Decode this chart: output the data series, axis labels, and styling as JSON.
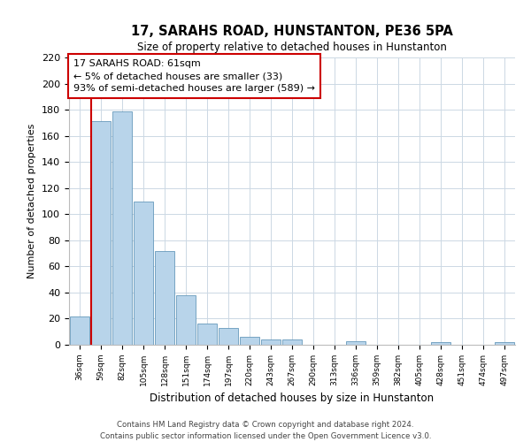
{
  "title": "17, SARAHS ROAD, HUNSTANTON, PE36 5PA",
  "subtitle": "Size of property relative to detached houses in Hunstanton",
  "xlabel": "Distribution of detached houses by size in Hunstanton",
  "ylabel": "Number of detached properties",
  "bin_labels": [
    "36sqm",
    "59sqm",
    "82sqm",
    "105sqm",
    "128sqm",
    "151sqm",
    "174sqm",
    "197sqm",
    "220sqm",
    "243sqm",
    "267sqm",
    "290sqm",
    "313sqm",
    "336sqm",
    "359sqm",
    "382sqm",
    "405sqm",
    "428sqm",
    "451sqm",
    "474sqm",
    "497sqm"
  ],
  "bar_heights": [
    22,
    171,
    179,
    110,
    72,
    38,
    16,
    13,
    6,
    4,
    4,
    0,
    0,
    3,
    0,
    0,
    0,
    2,
    0,
    0,
    2
  ],
  "bar_color": "#b8d4ea",
  "bar_edge_color": "#6699bb",
  "highlight_line_color": "#cc0000",
  "annotation_title": "17 SARAHS ROAD: 61sqm",
  "annotation_line1": "← 5% of detached houses are smaller (33)",
  "annotation_line2": "93% of semi-detached houses are larger (589) →",
  "annotation_box_color": "#ffffff",
  "annotation_box_edge_color": "#cc0000",
  "ylim": [
    0,
    220
  ],
  "yticks": [
    0,
    20,
    40,
    60,
    80,
    100,
    120,
    140,
    160,
    180,
    200,
    220
  ],
  "footer_line1": "Contains HM Land Registry data © Crown copyright and database right 2024.",
  "footer_line2": "Contains public sector information licensed under the Open Government Licence v3.0.",
  "background_color": "#ffffff",
  "grid_color": "#ccd8e4"
}
